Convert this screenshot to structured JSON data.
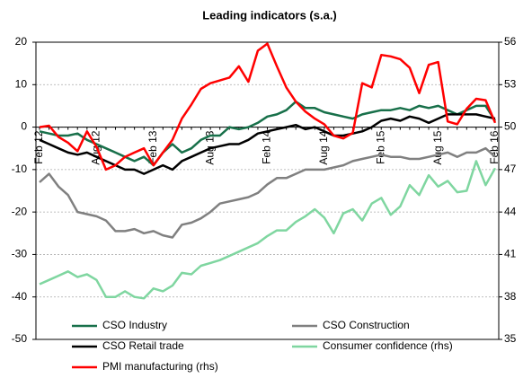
{
  "chart_data": {
    "type": "line",
    "title": "Leading indicators (s.a.)",
    "categories": [
      "Feb 12",
      null,
      null,
      null,
      null,
      null,
      "Aug 12",
      null,
      null,
      null,
      null,
      null,
      "Feb 13",
      null,
      null,
      null,
      null,
      null,
      "Aug 13",
      null,
      null,
      null,
      null,
      null,
      "Feb 14",
      null,
      null,
      null,
      null,
      null,
      "Aug 14",
      null,
      null,
      null,
      null,
      null,
      "Feb 15",
      null,
      null,
      null,
      null,
      null,
      "Aug 15",
      null,
      null,
      null,
      null,
      null,
      "Feb 16"
    ],
    "ylim": [
      -50,
      20
    ],
    "yticks": [
      20,
      10,
      0,
      -10,
      -20,
      -30,
      -40,
      -50
    ],
    "y2lim": [
      35,
      56
    ],
    "y2ticks": [
      56,
      53,
      50,
      47,
      44,
      41,
      38,
      35
    ],
    "grid": true,
    "series": [
      {
        "name": "CSO Industry",
        "color": "#18704a",
        "values": [
          -1,
          -1.5,
          -2,
          -2,
          -1.5,
          -3,
          -4,
          -5,
          -6,
          -7,
          -8,
          -7,
          -9,
          -6,
          -4,
          -6,
          -5,
          -3,
          -2,
          -2,
          0,
          -0.5,
          0,
          1,
          2.5,
          3,
          4,
          6,
          4.5,
          4.5,
          3.5,
          3,
          2.5,
          2,
          3,
          3.5,
          4,
          4,
          4.5,
          4,
          5,
          4.5,
          5,
          4,
          3,
          4,
          5,
          5,
          1.5
        ]
      },
      {
        "name": "CSO Construction",
        "color": "#808080",
        "values": [
          -13,
          -11,
          -14,
          -16,
          -20,
          -20.5,
          -21,
          -22,
          -24.5,
          -24.5,
          -24,
          -25,
          -24.5,
          -25.5,
          -26,
          -23,
          -22.5,
          -21.5,
          -20,
          -18,
          -17.5,
          -17,
          -16.5,
          -15.5,
          -13.5,
          -12,
          -12,
          -11,
          -10,
          -10,
          -10,
          -9.5,
          -9,
          -8,
          -7.5,
          -7,
          -6.5,
          -7,
          -7,
          -7.5,
          -7.5,
          -7,
          -6.5,
          -6,
          -7,
          -6,
          -6,
          -5,
          -7
        ]
      },
      {
        "name": "CSO Retail trade",
        "color": "#000000",
        "values": [
          -3,
          -4,
          -5,
          -6,
          -6.5,
          -6,
          -7,
          -8,
          -9,
          -10,
          -10,
          -11,
          -10,
          -9,
          -10,
          -8,
          -7,
          -6,
          -5,
          -4.5,
          -4,
          -4,
          -3,
          -1.5,
          -1,
          -0.5,
          0,
          0.5,
          -0.5,
          0,
          -1,
          -2,
          -2,
          -1.5,
          -1,
          0,
          1.5,
          2,
          1.5,
          2.5,
          2,
          1,
          2,
          3,
          3,
          3,
          3,
          2.5,
          2
        ]
      },
      {
        "name": "Consumer confidence (rhs)",
        "color": "#7fd6a0",
        "axis": "y2",
        "values": [
          38.9,
          39.2,
          39.5,
          39.8,
          39.4,
          39.6,
          39.2,
          38.0,
          38.0,
          38.4,
          38.0,
          37.9,
          38.6,
          38.4,
          38.8,
          39.7,
          39.6,
          40.2,
          40.4,
          40.6,
          40.9,
          41.2,
          41.5,
          41.8,
          42.3,
          42.7,
          42.7,
          43.3,
          43.7,
          44.2,
          43.6,
          42.5,
          43.9,
          44.2,
          43.4,
          44.6,
          45.0,
          43.8,
          44.4,
          45.9,
          45.2,
          46.6,
          45.8,
          46.2,
          45.4,
          45.5,
          47.6,
          45.9,
          47.1
        ]
      },
      {
        "name": "PMI manufacturing (rhs)",
        "color": "#ff0000",
        "axis": "y2",
        "values": [
          50.0,
          50.1,
          49.3,
          48.9,
          48.3,
          49.7,
          48.6,
          47.0,
          47.3,
          47.9,
          48.2,
          48.5,
          47.3,
          48.2,
          49.1,
          50.6,
          51.6,
          52.7,
          53.1,
          53.3,
          53.5,
          54.3,
          53.2,
          55.4,
          55.9,
          54.3,
          52.8,
          51.8,
          51.1,
          50.6,
          50.2,
          49.4,
          49.2,
          49.6,
          53.1,
          52.8,
          55.1,
          55.0,
          54.8,
          54.2,
          52.4,
          54.4,
          54.6,
          50.4,
          50.2,
          51.3,
          52.0,
          51.9,
          50.3
        ]
      }
    ]
  }
}
